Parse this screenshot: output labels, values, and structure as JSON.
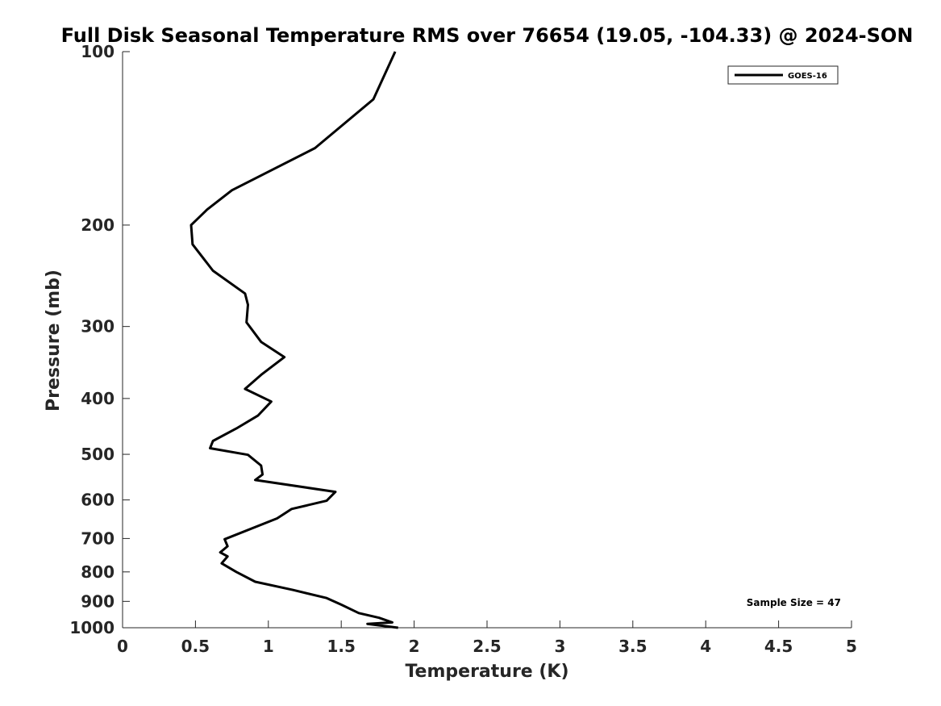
{
  "chart_data": {
    "type": "line",
    "title": "Full Disk Seasonal Temperature RMS over 76654 (19.05, -104.33) @ 2024-SON",
    "xlabel": "Temperature (K)",
    "ylabel": "Pressure (mb)",
    "xlim": [
      0,
      5
    ],
    "ylim": [
      100,
      1000
    ],
    "yscale": "log",
    "y_reversed": true,
    "xticks": [
      0,
      0.5,
      1,
      1.5,
      2,
      2.5,
      3,
      3.5,
      4,
      4.5,
      5
    ],
    "xtick_labels": [
      "0",
      "0.5",
      "1",
      "1.5",
      "2",
      "2.5",
      "3",
      "3.5",
      "4",
      "4.5",
      "5"
    ],
    "yticks": [
      100,
      200,
      300,
      400,
      500,
      600,
      700,
      800,
      900,
      1000
    ],
    "ytick_labels": [
      "100",
      "200",
      "300",
      "400",
      "500",
      "600",
      "700",
      "800",
      "900",
      "1000"
    ],
    "grid": false,
    "legend_position": "top-right",
    "line_color": "#000000",
    "series": [
      {
        "name": "GOES-16",
        "x": [
          1.87,
          1.72,
          1.32,
          0.75,
          0.58,
          0.47,
          0.48,
          0.62,
          0.84,
          0.86,
          0.85,
          0.95,
          1.11,
          0.95,
          0.84,
          1.02,
          0.93,
          0.78,
          0.62,
          0.6,
          0.86,
          0.95,
          0.96,
          0.91,
          1.46,
          1.4,
          1.16,
          1.06,
          0.7,
          0.72,
          0.67,
          0.72,
          0.68,
          0.78,
          0.91,
          1.17,
          1.4,
          1.5,
          1.62,
          1.76,
          1.85,
          1.68,
          1.89
        ],
        "y": [
          100,
          121,
          147,
          174,
          188,
          200,
          216,
          240,
          263,
          275,
          295,
          319,
          339,
          364,
          385,
          405,
          428,
          451,
          474,
          488,
          501,
          523,
          542,
          554,
          581,
          602,
          622,
          646,
          702,
          722,
          740,
          752,
          773,
          800,
          832,
          860,
          888,
          912,
          943,
          961,
          979,
          985,
          1000
        ]
      }
    ],
    "annotations": [
      "Sample Size = 47"
    ]
  }
}
